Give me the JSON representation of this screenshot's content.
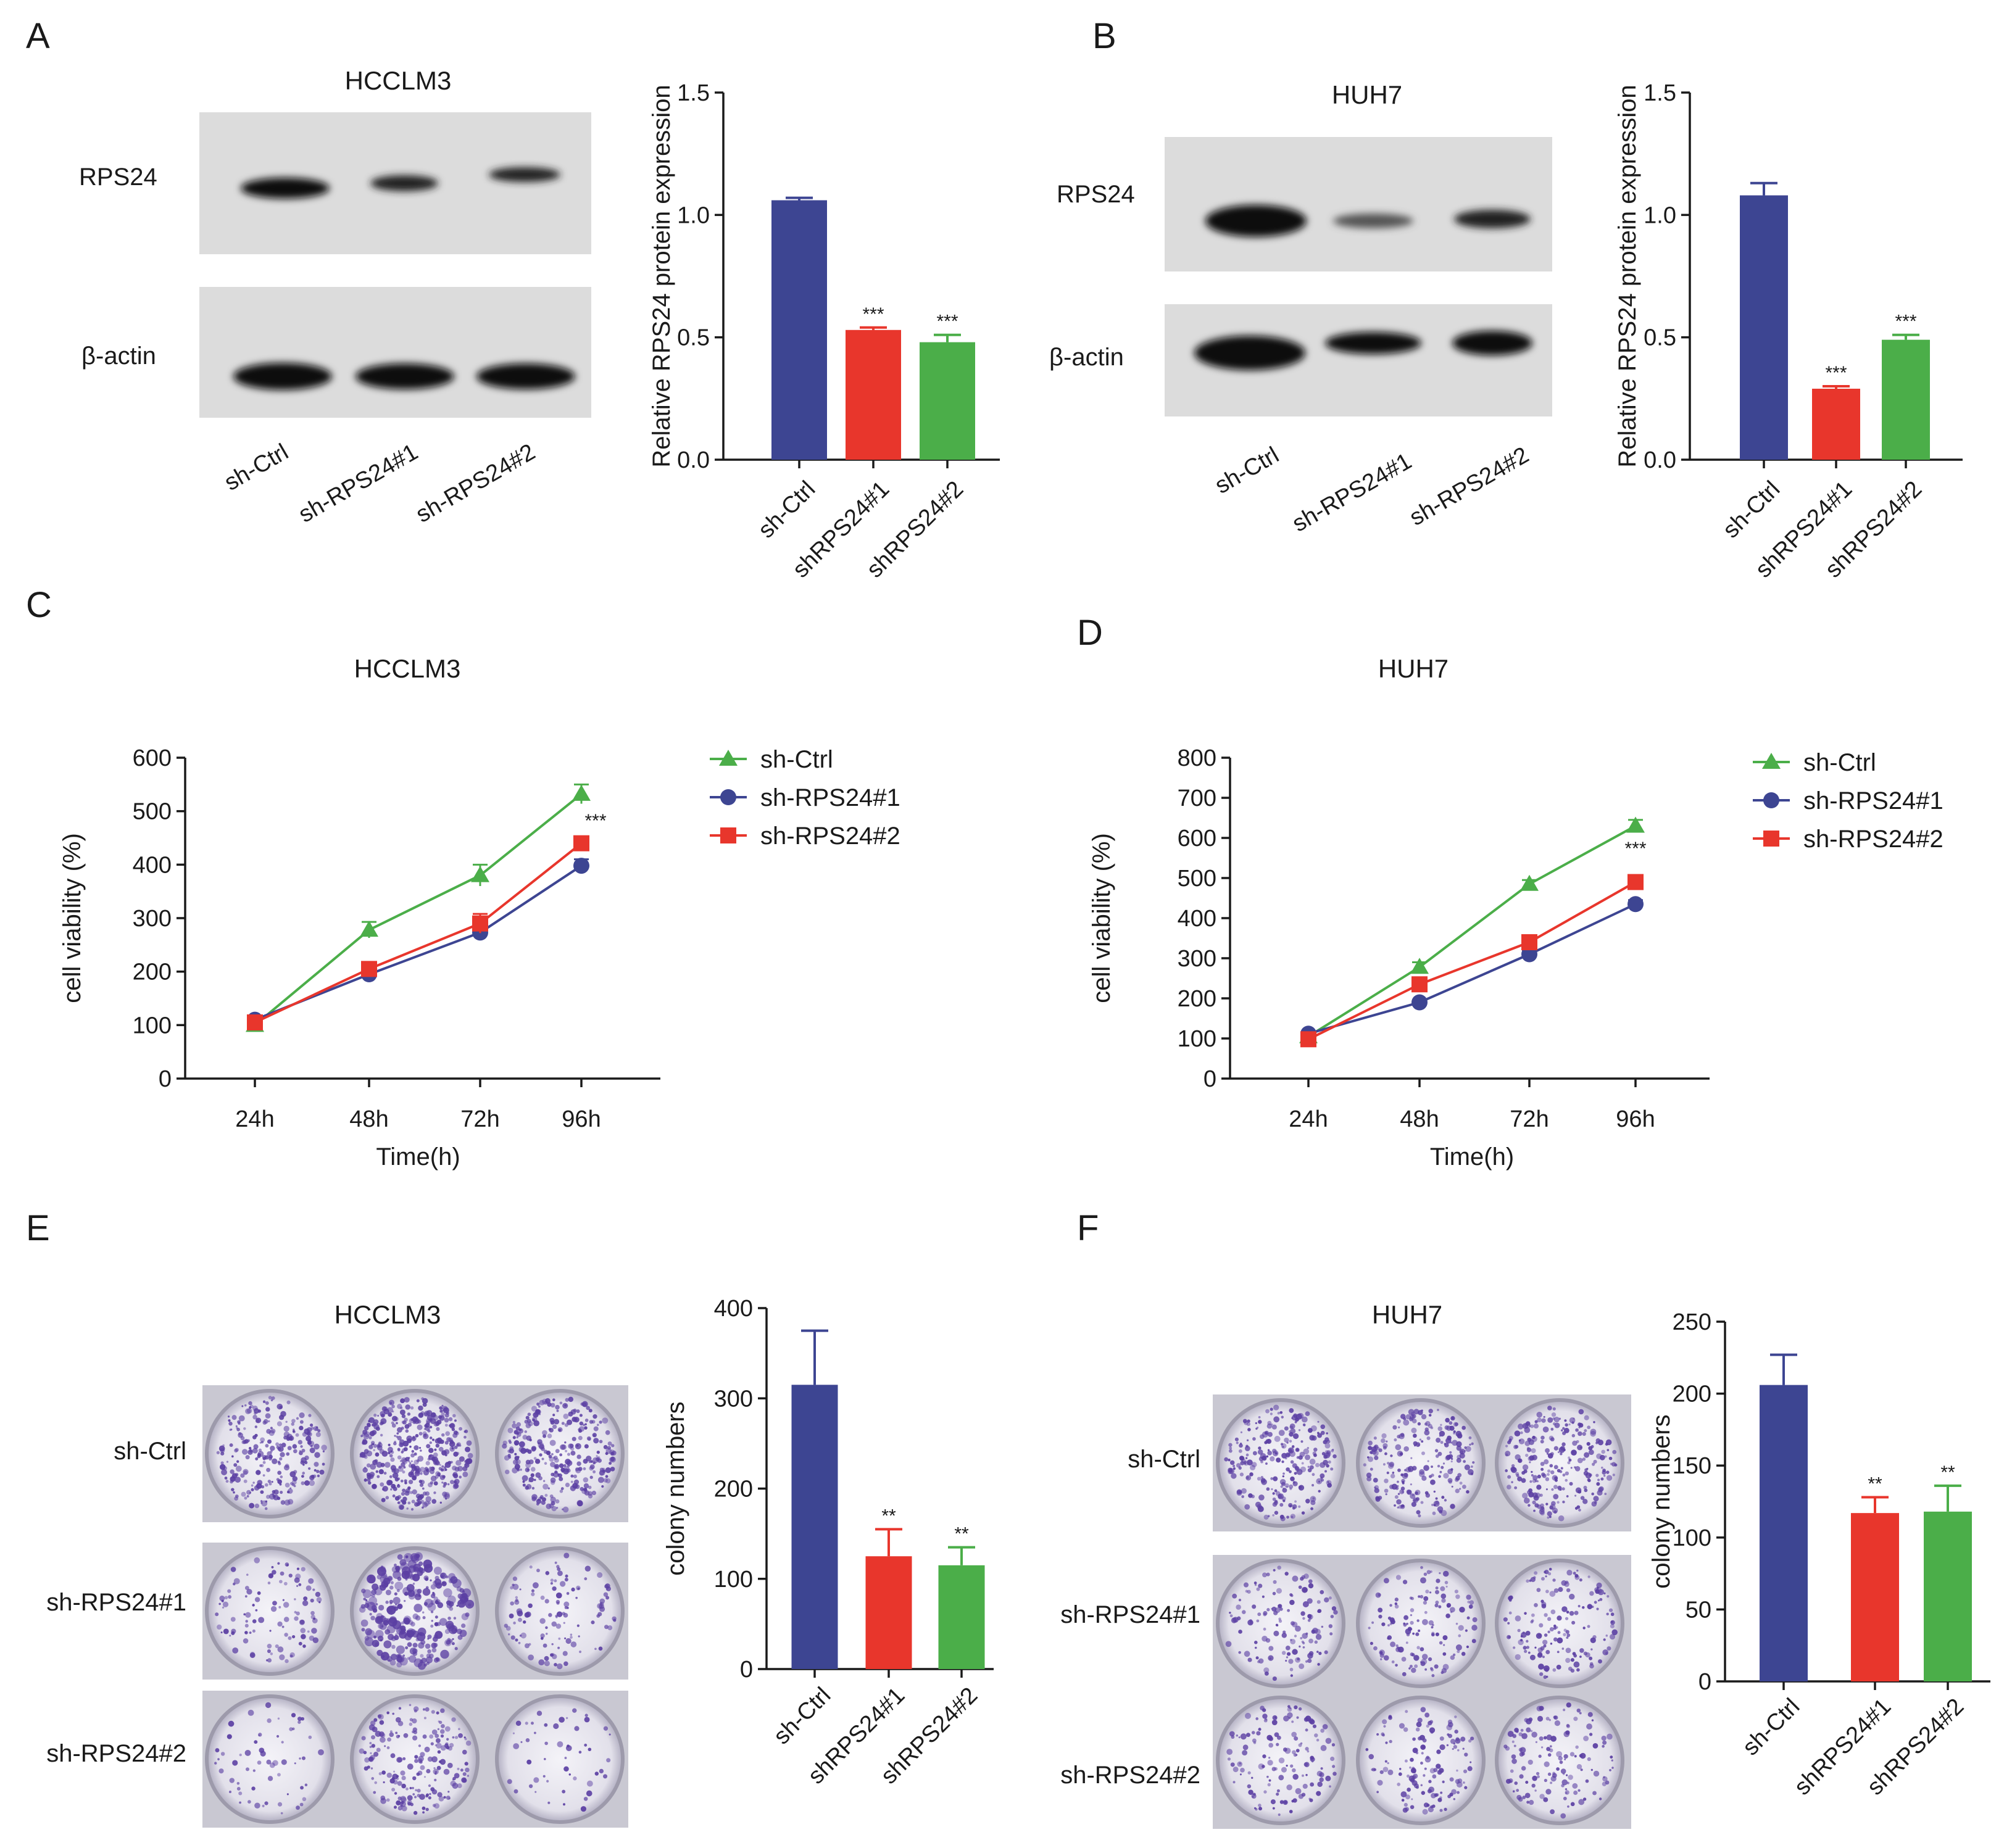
{
  "colors": {
    "ctrl": "#3d4592",
    "kd1": "#e8362c",
    "kd2": "#4bae49",
    "line_ctrl": "#4bae49",
    "line_kd1": "#3d4592",
    "line_kd2": "#e8362c",
    "stain": "#5b3fa3"
  },
  "panels": {
    "A": {
      "letter": "A",
      "title": "HCCLM3",
      "band1": "RPS24",
      "band2": "β-actin",
      "lanes": [
        "sh-Ctrl",
        "sh-RPS24#1",
        "sh-RPS24#2"
      ]
    },
    "B": {
      "letter": "B",
      "title": "HUH7",
      "band1": "RPS24",
      "band2": "β-actin",
      "lanes": [
        "sh-Ctrl",
        "sh-RPS24#1",
        "sh-RPS24#2"
      ]
    },
    "C": {
      "letter": "C",
      "title": "HCCLM3"
    },
    "D": {
      "letter": "D",
      "title": "HUH7"
    },
    "E": {
      "letter": "E",
      "title": "HCCLM3",
      "rows": [
        "sh-Ctrl",
        "sh-RPS24#1",
        "sh-RPS24#2"
      ]
    },
    "F": {
      "letter": "F",
      "title": "HUH7",
      "rows": [
        "sh-Ctrl",
        "sh-RPS24#1",
        "sh-RPS24#2"
      ]
    }
  },
  "chart_data": [
    {
      "id": "A-bar",
      "type": "bar",
      "title": "",
      "categories": [
        "sh-Ctrl",
        "shRPS24#1",
        "shRPS24#2"
      ],
      "values": [
        1.06,
        0.53,
        0.48
      ],
      "errors": [
        0.01,
        0.01,
        0.03
      ],
      "significance": [
        "",
        "***",
        "***"
      ],
      "ylabel": "Relative RPS24 protein expression",
      "ylim": [
        0,
        1.5
      ],
      "yticks": [
        0.0,
        0.5,
        1.0,
        1.5
      ],
      "ytick_labels": [
        "0.0",
        "0.5",
        "1.0",
        "1.5"
      ]
    },
    {
      "id": "B-bar",
      "type": "bar",
      "title": "",
      "categories": [
        "sh-Ctrl",
        "shRPS24#1",
        "shRPS24#2"
      ],
      "values": [
        1.08,
        0.29,
        0.49
      ],
      "errors": [
        0.05,
        0.01,
        0.02
      ],
      "significance": [
        "",
        "***",
        "***"
      ],
      "ylabel": "Relative RPS24 protein expression",
      "ylim": [
        0,
        1.5
      ],
      "yticks": [
        0.0,
        0.5,
        1.0,
        1.5
      ],
      "ytick_labels": [
        "0.0",
        "0.5",
        "1.0",
        "1.5"
      ]
    },
    {
      "id": "C-line",
      "type": "line",
      "title": "HCCLM3",
      "x": [
        "24h",
        "48h",
        "72h",
        "96h"
      ],
      "series": [
        {
          "name": "sh-Ctrl",
          "marker": "triangle",
          "values": [
            100,
            278,
            380,
            532
          ],
          "errors": [
            8,
            15,
            20,
            18
          ]
        },
        {
          "name": "sh-RPS24#1",
          "marker": "circle",
          "values": [
            110,
            195,
            273,
            398
          ],
          "errors": [
            5,
            8,
            10,
            12
          ]
        },
        {
          "name": "sh-RPS24#2",
          "marker": "square",
          "values": [
            105,
            205,
            290,
            440
          ],
          "errors": [
            5,
            8,
            18,
            12
          ]
        }
      ],
      "annotation": "***",
      "xlabel": "Time(h)",
      "ylabel": "cell viability (%)",
      "ylim": [
        0,
        600
      ],
      "yticks": [
        0,
        100,
        200,
        300,
        400,
        500,
        600
      ]
    },
    {
      "id": "D-line",
      "type": "line",
      "title": "HUH7",
      "x": [
        "24h",
        "48h",
        "72h",
        "96h"
      ],
      "series": [
        {
          "name": "sh-Ctrl",
          "marker": "triangle",
          "values": [
            105,
            278,
            485,
            630
          ],
          "errors": [
            5,
            12,
            10,
            15
          ]
        },
        {
          "name": "sh-RPS24#1",
          "marker": "circle",
          "values": [
            112,
            190,
            310,
            435
          ],
          "errors": [
            5,
            6,
            10,
            10
          ]
        },
        {
          "name": "sh-RPS24#2",
          "marker": "square",
          "values": [
            98,
            235,
            340,
            490
          ],
          "errors": [
            5,
            8,
            10,
            10
          ]
        }
      ],
      "annotation": "***",
      "xlabel": "Time(h)",
      "ylabel": "cell viability (%)",
      "ylim": [
        0,
        800
      ],
      "yticks": [
        0,
        100,
        200,
        300,
        400,
        500,
        600,
        700,
        800
      ]
    },
    {
      "id": "E-bar",
      "type": "bar",
      "title": "",
      "categories": [
        "sh-Ctrl",
        "shRPS24#1",
        "shRPS24#2"
      ],
      "values": [
        315,
        125,
        115
      ],
      "errors": [
        60,
        30,
        20
      ],
      "significance": [
        "",
        "**",
        "**"
      ],
      "ylabel": "colony numbers",
      "ylim": [
        0,
        400
      ],
      "yticks": [
        0,
        100,
        200,
        300,
        400
      ],
      "ytick_labels": [
        "0",
        "100",
        "200",
        "300",
        "400"
      ]
    },
    {
      "id": "F-bar",
      "type": "bar",
      "title": "",
      "categories": [
        "sh-Ctrl",
        "shRPS24#1",
        "shRPS24#2"
      ],
      "values": [
        206,
        117,
        118
      ],
      "errors": [
        21,
        11,
        18
      ],
      "significance": [
        "",
        "**",
        "**"
      ],
      "ylabel": "colony numbers",
      "ylim": [
        0,
        250
      ],
      "yticks": [
        0,
        50,
        100,
        150,
        200,
        250
      ],
      "ytick_labels": [
        "0",
        "50",
        "100",
        "150",
        "200",
        "250"
      ]
    }
  ]
}
